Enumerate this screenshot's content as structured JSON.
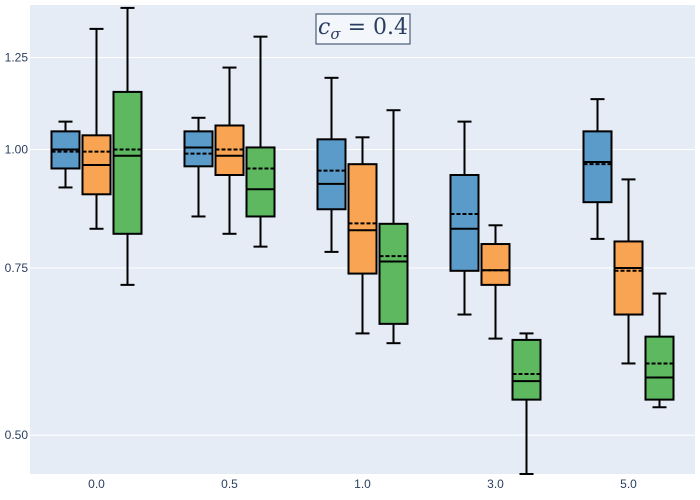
{
  "chart_data": {
    "type": "box",
    "title": "c_σ = 0.4",
    "title_parts": {
      "symbol": "c",
      "subscript": "σ",
      "rest": " = 0.4"
    },
    "categories": [
      "0.0",
      "0.5",
      "1.0",
      "3.0",
      "5.0"
    ],
    "xlabel": "",
    "ylabel": "",
    "y_scale": "log",
    "ylim": [
      0.455,
      1.42
    ],
    "y_ticks": [
      0.5,
      0.75,
      1.0,
      1.25
    ],
    "y_tick_labels": [
      "0.50",
      "0.75",
      "1.00",
      "1.25"
    ],
    "legend": false,
    "grid": true,
    "series": [
      {
        "name": "series-1",
        "color": "#1f77b4",
        "boxes": [
          {
            "lower_fence": 0.912,
            "q1": 0.955,
            "median": 1.0,
            "mean": 0.995,
            "q3": 1.045,
            "upper_fence": 1.07
          },
          {
            "lower_fence": 0.85,
            "q1": 0.96,
            "median": 1.005,
            "mean": 0.99,
            "q3": 1.045,
            "upper_fence": 1.08
          },
          {
            "lower_fence": 0.78,
            "q1": 0.865,
            "median": 0.92,
            "mean": 0.95,
            "q3": 1.025,
            "upper_fence": 1.19
          },
          {
            "lower_fence": 0.67,
            "q1": 0.745,
            "median": 0.825,
            "mean": 0.855,
            "q3": 0.94,
            "upper_fence": 1.07
          },
          {
            "lower_fence": 0.805,
            "q1": 0.88,
            "median": 0.97,
            "mean": 0.965,
            "q3": 1.045,
            "upper_fence": 1.13
          }
        ]
      },
      {
        "name": "series-2",
        "color": "#ff7f0e",
        "boxes": [
          {
            "lower_fence": 0.825,
            "q1": 0.897,
            "median": 0.963,
            "mean": 0.995,
            "q3": 1.035,
            "upper_fence": 1.34
          },
          {
            "lower_fence": 0.815,
            "q1": 0.94,
            "median": 0.985,
            "mean": 1.0,
            "q3": 1.06,
            "upper_fence": 1.22
          },
          {
            "lower_fence": 0.64,
            "q1": 0.74,
            "median": 0.822,
            "mean": 0.836,
            "q3": 0.965,
            "upper_fence": 1.03
          },
          {
            "lower_fence": 0.632,
            "q1": 0.72,
            "median": 0.746,
            "mean": 0.746,
            "q3": 0.795,
            "upper_fence": 0.832
          },
          {
            "lower_fence": 0.595,
            "q1": 0.67,
            "median": 0.75,
            "mean": 0.745,
            "q3": 0.8,
            "upper_fence": 0.93
          }
        ]
      },
      {
        "name": "series-3",
        "color": "#2ca02c",
        "boxes": [
          {
            "lower_fence": 0.72,
            "q1": 0.815,
            "median": 0.985,
            "mean": 1.0,
            "q3": 1.15,
            "upper_fence": 1.41
          },
          {
            "lower_fence": 0.79,
            "q1": 0.85,
            "median": 0.908,
            "mean": 0.955,
            "q3": 1.005,
            "upper_fence": 1.315
          },
          {
            "lower_fence": 0.625,
            "q1": 0.655,
            "median": 0.762,
            "mean": 0.772,
            "q3": 0.835,
            "upper_fence": 1.1
          },
          {
            "lower_fence": 0.455,
            "q1": 0.545,
            "median": 0.57,
            "mean": 0.58,
            "q3": 0.63,
            "upper_fence": 0.64
          },
          {
            "lower_fence": 0.535,
            "q1": 0.545,
            "median": 0.575,
            "mean": 0.595,
            "q3": 0.635,
            "upper_fence": 0.705
          }
        ]
      }
    ]
  }
}
